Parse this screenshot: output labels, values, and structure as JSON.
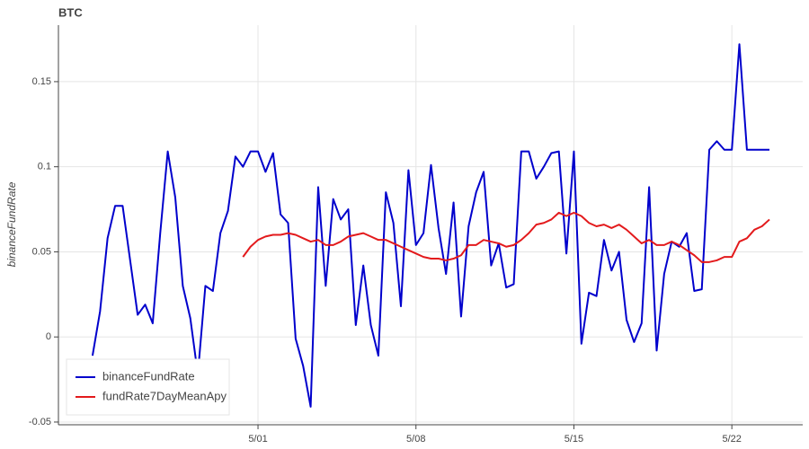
{
  "chart_data": {
    "type": "line",
    "title": "BTC",
    "y_label": "binanceFundRate",
    "x": [
      -6.333,
      -6,
      -5.667,
      -5.333,
      -5,
      -4.667,
      -4.333,
      -4,
      -3.667,
      -3.333,
      -3,
      -2.667,
      -2.333,
      -2,
      -1.667,
      -1.333,
      -1,
      -0.667,
      -0.333,
      0,
      0.333,
      0.667,
      1,
      1.333,
      1.667,
      2,
      2.333,
      2.667,
      3,
      3.333,
      3.667,
      4,
      4.333,
      4.667,
      5,
      5.333,
      5.667,
      6,
      6.333,
      6.667,
      7,
      7.333,
      7.667,
      8,
      8.333,
      8.667,
      9,
      9.333,
      9.667,
      10,
      10.333,
      10.667,
      11,
      11.333,
      11.667,
      12,
      12.333,
      12.667,
      13,
      13.333,
      13.667,
      14,
      14.333,
      14.667,
      15,
      15.333,
      15.667,
      16,
      16.333,
      16.667,
      17,
      17.333,
      17.667,
      18,
      18.333,
      18.667,
      19,
      19.333,
      19.667,
      20,
      20.333,
      20.667,
      21,
      21.333,
      21.667,
      22,
      22.333,
      22.667,
      23,
      23.333,
      23.667
    ],
    "series": [
      {
        "name": "binanceFundRate",
        "color": "#0000cc",
        "values": [
          -0.011,
          0.015,
          0.058,
          0.077,
          0.077,
          0.045,
          0.013,
          0.019,
          0.008,
          0.061,
          0.109,
          0.082,
          0.03,
          0.011,
          -0.022,
          0.03,
          0.027,
          0.061,
          0.074,
          0.106,
          0.1,
          0.109,
          0.109,
          0.097,
          0.108,
          0.072,
          0.067,
          -0.001,
          -0.017,
          -0.041,
          0.088,
          0.03,
          0.081,
          0.069,
          0.075,
          0.007,
          0.042,
          0.007,
          -0.011,
          0.085,
          0.067,
          0.018,
          0.098,
          0.054,
          0.061,
          0.101,
          0.064,
          0.037,
          0.079,
          0.012,
          0.065,
          0.085,
          0.097,
          0.042,
          0.055,
          0.029,
          0.031,
          0.109,
          0.109,
          0.093,
          0.1,
          0.108,
          0.109,
          0.049,
          0.109,
          -0.004,
          0.026,
          0.024,
          0.057,
          0.039,
          0.05,
          0.01,
          -0.003,
          0.008,
          0.088,
          -0.008,
          0.037,
          0.056,
          0.053,
          0.061,
          0.027,
          0.028,
          0.11,
          0.115,
          0.11,
          0.11,
          0.172,
          0.11,
          0.11,
          0.11,
          0.11
        ]
      },
      {
        "name": "fundRate7DayMeanApy",
        "color": "#e31a1c",
        "values": [
          null,
          null,
          null,
          null,
          null,
          null,
          null,
          null,
          null,
          null,
          null,
          null,
          null,
          null,
          null,
          null,
          null,
          null,
          null,
          null,
          0.047,
          0.053,
          0.057,
          0.059,
          0.06,
          0.06,
          0.061,
          0.06,
          0.058,
          0.056,
          0.057,
          0.054,
          0.054,
          0.056,
          0.059,
          0.06,
          0.061,
          0.059,
          0.057,
          0.057,
          0.055,
          0.053,
          0.051,
          0.049,
          0.047,
          0.046,
          0.046,
          0.045,
          0.046,
          0.048,
          0.054,
          0.054,
          0.057,
          0.056,
          0.055,
          0.053,
          0.054,
          0.057,
          0.061,
          0.066,
          0.067,
          0.069,
          0.073,
          0.071,
          0.073,
          0.071,
          0.067,
          0.065,
          0.066,
          0.064,
          0.066,
          0.063,
          0.059,
          0.055,
          0.057,
          0.054,
          0.054,
          0.056,
          0.054,
          0.051,
          0.048,
          0.044,
          0.044,
          0.045,
          0.047,
          0.047,
          0.056,
          0.058,
          0.063,
          0.065,
          0.069
        ]
      }
    ],
    "xlim": [
      -7.845,
      25.14
    ],
    "xticks": [
      {
        "value": 1,
        "label": "5/01"
      },
      {
        "value": 8,
        "label": "5/08"
      },
      {
        "value": 15,
        "label": "5/15"
      },
      {
        "value": 22,
        "label": "5/22"
      }
    ],
    "ylim": [
      -0.0516,
      0.1832
    ],
    "yticks": [
      -0.05,
      0,
      0.05,
      0.1,
      0.15
    ],
    "grid": true,
    "legend": "bottom-left"
  }
}
